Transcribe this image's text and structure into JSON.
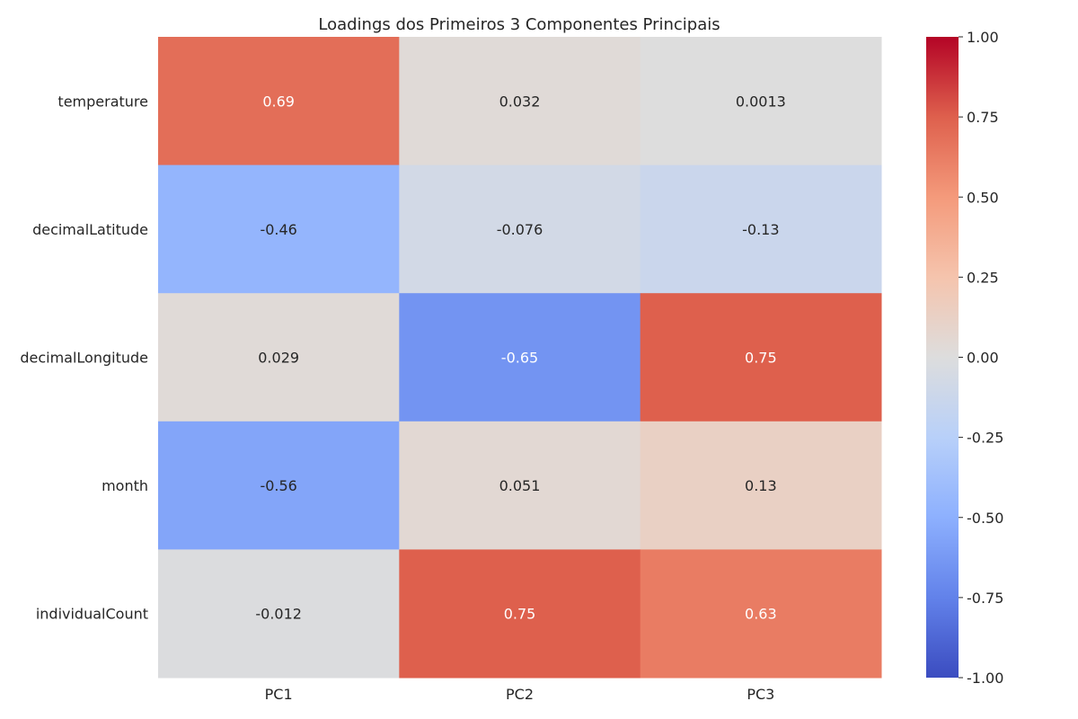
{
  "chart_data": {
    "type": "heatmap",
    "title": "Loadings dos Primeiros 3 Componentes Principais",
    "xlabel": "",
    "ylabel": "",
    "x_categories": [
      "PC1",
      "PC2",
      "PC3"
    ],
    "y_categories": [
      "temperature",
      "decimalLatitude",
      "decimalLongitude",
      "month",
      "individualCount"
    ],
    "values": [
      [
        0.69,
        0.032,
        0.0013
      ],
      [
        -0.46,
        -0.076,
        -0.13
      ],
      [
        0.029,
        -0.65,
        0.75
      ],
      [
        -0.56,
        0.051,
        0.13
      ],
      [
        -0.012,
        0.75,
        0.63
      ]
    ],
    "annotations": [
      [
        "0.69",
        "0.032",
        "0.0013"
      ],
      [
        "-0.46",
        "-0.076",
        "-0.13"
      ],
      [
        "0.029",
        "-0.65",
        "0.75"
      ],
      [
        "-0.56",
        "0.051",
        "0.13"
      ],
      [
        "-0.012",
        "0.75",
        "0.63"
      ]
    ],
    "colormap": "coolwarm",
    "vmin": -1.0,
    "vmax": 1.0,
    "colorbar_ticks": [
      1.0,
      0.75,
      0.5,
      0.25,
      0.0,
      -0.25,
      -0.5,
      -0.75,
      -1.0
    ],
    "colorbar_tick_labels": [
      "1.00",
      "0.75",
      "0.50",
      "0.25",
      "0.00",
      "-0.25",
      "-0.50",
      "-0.75",
      "-1.00"
    ],
    "grid": false
  }
}
